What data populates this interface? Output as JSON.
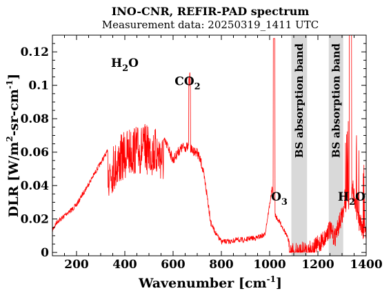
{
  "chart_data": {
    "type": "line",
    "title": "INO-CNR, REFIR-PAD spectrum",
    "subtitle": "Measurement data: 20250319_1411 UTC",
    "xlabel": {
      "main": "Wavenumber [cm",
      "sup": "-1",
      "tail": "]"
    },
    "ylabel": {
      "main": "DLR [W/m",
      "sup": "2",
      "mid": "-sr-cm",
      "sup2": "-1",
      "tail": "]"
    },
    "xlim": [
      100,
      1400
    ],
    "ylim": [
      -0.002,
      0.13
    ],
    "x_ticks": [
      200,
      400,
      600,
      800,
      1000,
      1200,
      1400
    ],
    "y_ticks": [
      0,
      0.02,
      0.04,
      0.06,
      0.08,
      0.1,
      0.12
    ],
    "y_tick_labels": [
      "0",
      "0.02",
      "0.04",
      "0.06",
      "0.08",
      "0.1",
      "0.12"
    ],
    "grid": false,
    "line_color": "#ff0000",
    "band_color": "#d9d9d9",
    "bands": [
      {
        "x0": 1090,
        "x1": 1155,
        "label": "BS absorption band"
      },
      {
        "x0": 1245,
        "x1": 1305,
        "label": "BS absorption band"
      }
    ],
    "annotations": [
      {
        "text": "H",
        "sub": "2",
        "tail": "O",
        "x": 400,
        "y": 0.111
      },
      {
        "text": "CO",
        "sub": "2",
        "tail": "",
        "x": 660,
        "y": 0.1
      },
      {
        "text": "O",
        "sub": "3",
        "tail": "",
        "x": 1040,
        "y": 0.031
      },
      {
        "text": "H",
        "sub": "2",
        "tail": "O",
        "x": 1340,
        "y": 0.031
      }
    ],
    "series": [
      {
        "x": [
          100,
          120,
          140,
          160,
          180,
          200,
          220,
          240,
          260,
          280,
          300,
          320,
          340,
          360,
          380,
          400,
          420,
          440,
          460,
          480,
          500,
          520,
          540,
          560,
          580,
          600,
          620,
          640,
          660,
          680,
          700,
          720,
          740,
          760,
          780,
          800,
          820,
          840,
          860,
          880,
          900,
          920,
          940,
          960,
          980,
          1000,
          1010,
          1020,
          1030,
          1040,
          1060,
          1080,
          1090,
          1120,
          1155,
          1170,
          1190,
          1210,
          1230,
          1245,
          1270,
          1305,
          1315,
          1325,
          1335,
          1345,
          1355,
          1370,
          1385,
          1400
        ],
        "y": [
          0.015,
          0.02,
          0.022,
          0.025,
          0.027,
          0.03,
          0.035,
          0.04,
          0.045,
          0.05,
          0.055,
          0.06,
          0.064,
          0.067,
          0.07,
          0.073,
          0.075,
          0.076,
          0.076,
          0.077,
          0.076,
          0.075,
          0.074,
          0.07,
          0.066,
          0.058,
          0.063,
          0.066,
          0.066,
          0.064,
          0.063,
          0.055,
          0.038,
          0.018,
          0.012,
          0.008,
          0.008,
          0.008,
          0.009,
          0.009,
          0.009,
          0.01,
          0.01,
          0.011,
          0.012,
          0.03,
          0.04,
          0.025,
          0.022,
          0.02,
          0.015,
          0.008,
          0.006,
          0.006,
          0.007,
          0.008,
          0.009,
          0.012,
          0.015,
          0.02,
          0.015,
          0.03,
          0.035,
          0.04,
          0.03,
          0.045,
          0.035,
          0.025,
          0.02,
          0.018
        ]
      }
    ]
  }
}
